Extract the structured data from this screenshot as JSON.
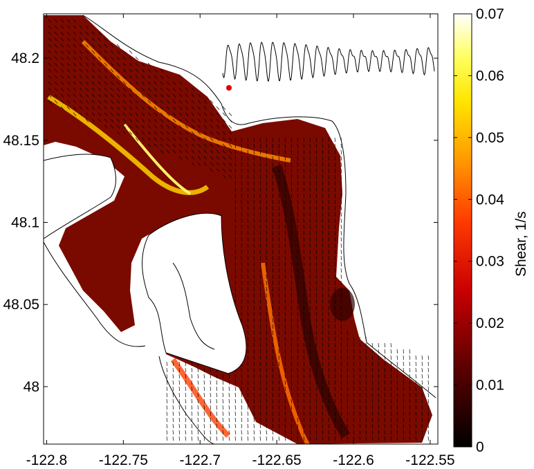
{
  "chart_data": {
    "type": "heatmap",
    "title": "",
    "xlabel": "",
    "ylabel": "",
    "xlim": [
      -122.802,
      -122.545
    ],
    "ylim": [
      47.965,
      48.227
    ],
    "x_ticks": [
      -122.8,
      -122.75,
      -122.7,
      -122.65,
      -122.6,
      -122.55
    ],
    "y_ticks": [
      48,
      48.05,
      48.1,
      48.15,
      48.2
    ],
    "x_tick_labels": [
      "-122.8",
      "-122.75",
      "-122.7",
      "-122.65",
      "-122.6",
      "-122.55"
    ],
    "y_tick_labels": [
      "48",
      "48.05",
      "48.1",
      "48.15",
      "48.2"
    ],
    "grid": false,
    "colorbar": {
      "label": "Shear, 1/s",
      "range": [
        0,
        0.07
      ],
      "ticks": [
        0,
        0.01,
        0.02,
        0.03,
        0.04,
        0.05,
        0.06,
        0.07
      ],
      "tick_labels": [
        "0",
        "0.01",
        "0.02",
        "0.03",
        "0.04",
        "0.05",
        "0.06",
        "0.07"
      ],
      "colormap": "hot",
      "colors": [
        "#000000",
        "#8b0000",
        "#ff0000",
        "#ff8c00",
        "#ffff00",
        "#ffffff"
      ]
    },
    "inset": {
      "type": "line",
      "description_color": "#000000",
      "marker_color": "#e00000",
      "marker_index": 0
    },
    "coastline_color": "#000000",
    "vector_color": "#000000"
  }
}
